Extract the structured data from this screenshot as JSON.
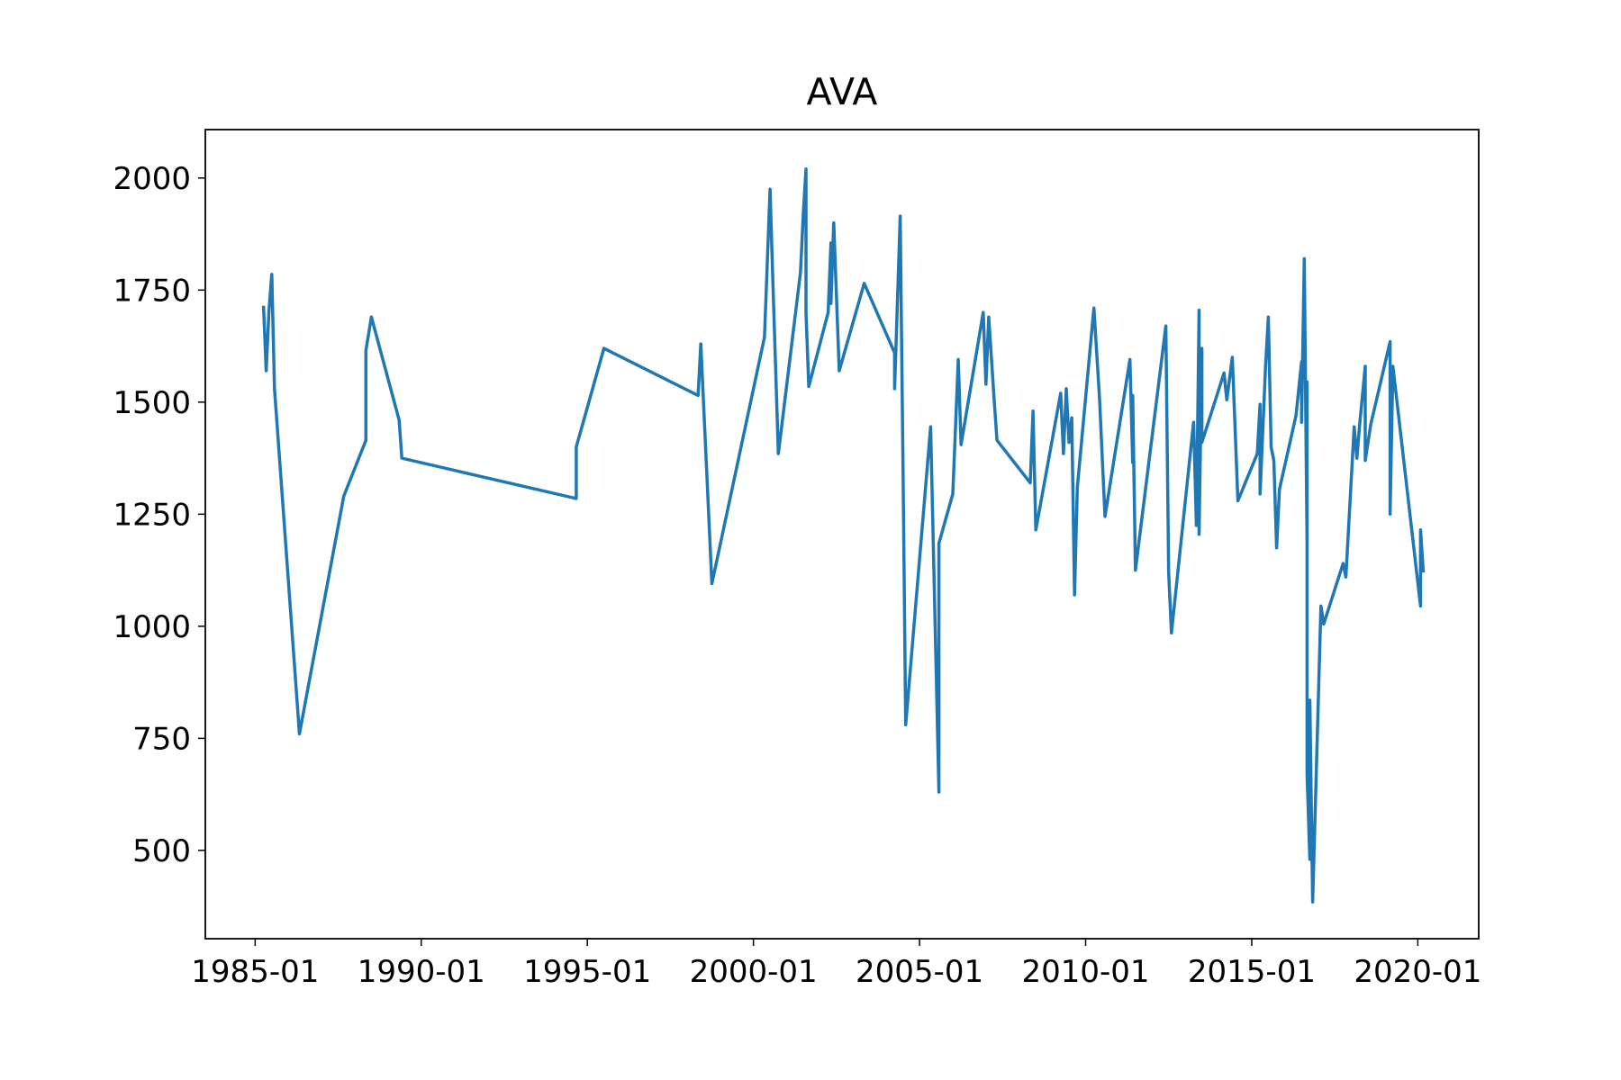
{
  "chart_data": {
    "type": "line",
    "title": "AVA",
    "x": [
      "1985-04",
      "1985-05",
      "1985-06",
      "1985-07",
      "1985-08",
      "1986-05",
      "1987-09",
      "1988-05",
      "1988-05",
      "1988-07",
      "1989-05",
      "1989-06",
      "1994-09",
      "1994-09",
      "1995-07",
      "1998-05",
      "1998-06",
      "1998-10",
      "2000-05",
      "2000-07",
      "2000-08",
      "2000-10",
      "2001-06",
      "2001-07",
      "2001-08",
      "2001-08",
      "2001-09",
      "2002-04",
      "2002-05",
      "2002-05",
      "2002-06",
      "2002-08",
      "2003-05",
      "2004-04",
      "2004-04",
      "2004-06",
      "2004-07",
      "2004-08",
      "2005-05",
      "2005-08",
      "2005-08",
      "2006-01",
      "2006-03",
      "2006-04",
      "2006-12",
      "2007-01",
      "2007-02",
      "2007-04",
      "2007-05",
      "2008-05",
      "2008-06",
      "2008-07",
      "2009-04",
      "2009-05",
      "2009-06",
      "2009-07",
      "2009-08",
      "2009-09",
      "2009-10",
      "2010-04",
      "2010-06",
      "2010-08",
      "2011-05",
      "2011-06",
      "2011-06",
      "2011-07",
      "2012-06",
      "2012-07",
      "2012-08",
      "2013-04",
      "2013-05",
      "2013-06",
      "2013-06",
      "2013-07",
      "2013-07",
      "2014-03",
      "2014-04",
      "2014-06",
      "2014-08",
      "2015-03",
      "2015-04",
      "2015-04",
      "2015-06",
      "2015-07",
      "2015-08",
      "2015-09",
      "2015-10",
      "2015-11",
      "2016-05",
      "2016-07",
      "2016-07",
      "2016-08",
      "2016-09",
      "2016-09",
      "2016-09",
      "2016-10",
      "2016-10",
      "2016-11",
      "2017-02",
      "2017-03",
      "2017-10",
      "2017-11",
      "2018-02",
      "2018-03",
      "2018-04",
      "2018-06",
      "2018-06",
      "2018-08",
      "2019-03",
      "2019-03",
      "2019-04",
      "2020-02",
      "2020-02",
      "2020-03"
    ],
    "series": [
      {
        "color": "#1f77b4",
        "values": [
          1715,
          1570,
          1705,
          1785,
          1530,
          760,
          1290,
          1415,
          1615,
          1690,
          1460,
          1375,
          1285,
          1400,
          1620,
          1515,
          1630,
          1095,
          1645,
          1975,
          1770,
          1385,
          1790,
          1920,
          2020,
          1700,
          1535,
          1700,
          1855,
          1720,
          1900,
          1570,
          1765,
          1610,
          1530,
          1915,
          1380,
          780,
          1445,
          630,
          1185,
          1295,
          1595,
          1405,
          1700,
          1540,
          1690,
          1500,
          1415,
          1320,
          1480,
          1215,
          1520,
          1385,
          1530,
          1410,
          1465,
          1070,
          1310,
          1710,
          1510,
          1245,
          1595,
          1365,
          1515,
          1125,
          1670,
          1120,
          985,
          1455,
          1225,
          1705,
          1205,
          1620,
          1410,
          1565,
          1505,
          1600,
          1280,
          1385,
          1495,
          1295,
          1580,
          1690,
          1400,
          1370,
          1175,
          1305,
          1470,
          1590,
          1455,
          1820,
          1185,
          1545,
          670,
          480,
          835,
          385,
          1045,
          1005,
          1140,
          1110,
          1445,
          1375,
          1450,
          1580,
          1370,
          1450,
          1635,
          1250,
          1580,
          1045,
          1215,
          1120
        ]
      }
    ],
    "xlim": [
      "1983-07",
      "2021-11"
    ],
    "xticks": [
      "1985-01",
      "1990-01",
      "1995-01",
      "2000-01",
      "2005-01",
      "2010-01",
      "2015-01",
      "2020-01"
    ],
    "ylim": [
      303,
      2108
    ],
    "yticks": [
      500,
      750,
      1000,
      1250,
      1500,
      1750,
      2000
    ]
  }
}
